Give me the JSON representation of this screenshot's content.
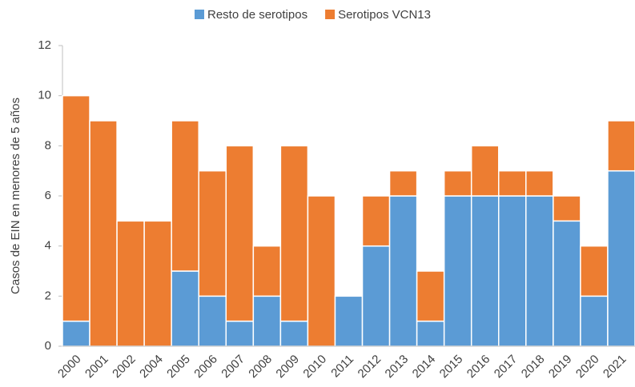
{
  "chart_data": {
    "type": "stacked_bar",
    "y_label": "Casos de EIN en menores de 5 años",
    "categories": [
      "2000",
      "2001",
      "2002",
      "2004",
      "2005",
      "2006",
      "2007",
      "2008",
      "2009",
      "2010",
      "2011",
      "2012",
      "2013",
      "2014",
      "2015",
      "2016",
      "2017",
      "2018",
      "2019",
      "2020",
      "2021"
    ],
    "series": [
      {
        "name": "Resto de serotipos",
        "color": "#5b9bd5",
        "values": [
          1,
          0,
          0,
          0,
          3,
          2,
          1,
          2,
          1,
          0,
          2,
          4,
          6,
          1,
          6,
          6,
          6,
          6,
          5,
          2,
          7
        ]
      },
      {
        "name": "Serotipos VCN13",
        "color": "#ed7d31",
        "values": [
          9,
          9,
          5,
          5,
          6,
          5,
          7,
          2,
          7,
          6,
          0,
          2,
          1,
          2,
          1,
          2,
          1,
          1,
          1,
          2,
          2
        ]
      }
    ],
    "ylim": [
      0,
      12
    ],
    "yticks": [
      0,
      2,
      4,
      6,
      8,
      10,
      12
    ],
    "legend": "top"
  }
}
